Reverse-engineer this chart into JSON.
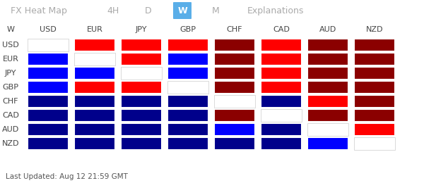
{
  "nav_items": [
    "FX Heat Map",
    "4H",
    "D",
    "W",
    "M",
    "Explanations"
  ],
  "nav_active": "W",
  "nav_bg": "#1c1c1c",
  "nav_active_color": "#5aaee8",
  "nav_text_color": "#aaaaaa",
  "currencies": [
    "USD",
    "EUR",
    "JPY",
    "GBP",
    "CHF",
    "CAD",
    "AUD",
    "NZD"
  ],
  "row_label": "W",
  "footer_text": "Last Updated: Aug 12 21:59 GMT",
  "bg_color": "#ffffff",
  "colors": {
    "red": "#ff0000",
    "dark_red": "#8b0000",
    "blue": "#0000ff",
    "dark_blue": "#00008b",
    "white": "#ffffff"
  },
  "heat_matrix": [
    [
      "white",
      "red",
      "red",
      "red",
      "dark_red",
      "red",
      "dark_red",
      "dark_red"
    ],
    [
      "blue",
      "white",
      "red",
      "blue",
      "dark_red",
      "red",
      "dark_red",
      "dark_red"
    ],
    [
      "blue",
      "blue",
      "white",
      "blue",
      "dark_red",
      "red",
      "dark_red",
      "dark_red"
    ],
    [
      "blue",
      "red",
      "red",
      "white",
      "dark_red",
      "red",
      "dark_red",
      "dark_red"
    ],
    [
      "dark_blue",
      "dark_blue",
      "dark_blue",
      "dark_blue",
      "white",
      "dark_blue",
      "red",
      "dark_red"
    ],
    [
      "dark_blue",
      "dark_blue",
      "dark_blue",
      "dark_blue",
      "dark_red",
      "white",
      "dark_red",
      "dark_red"
    ],
    [
      "dark_blue",
      "dark_blue",
      "dark_blue",
      "dark_blue",
      "blue",
      "dark_blue",
      "white",
      "red"
    ],
    [
      "dark_blue",
      "dark_blue",
      "dark_blue",
      "dark_blue",
      "dark_blue",
      "dark_blue",
      "blue",
      "white"
    ]
  ],
  "nav_x_positions": [
    55,
    160,
    210,
    258,
    305,
    390
  ],
  "grid_color": "#ffffff",
  "header_text_color": "#444444",
  "row_label_color": "#444444",
  "footer_color": "#555555",
  "nav_fontsize": 9,
  "cell_fontsize": 8,
  "footer_fontsize": 7.5
}
